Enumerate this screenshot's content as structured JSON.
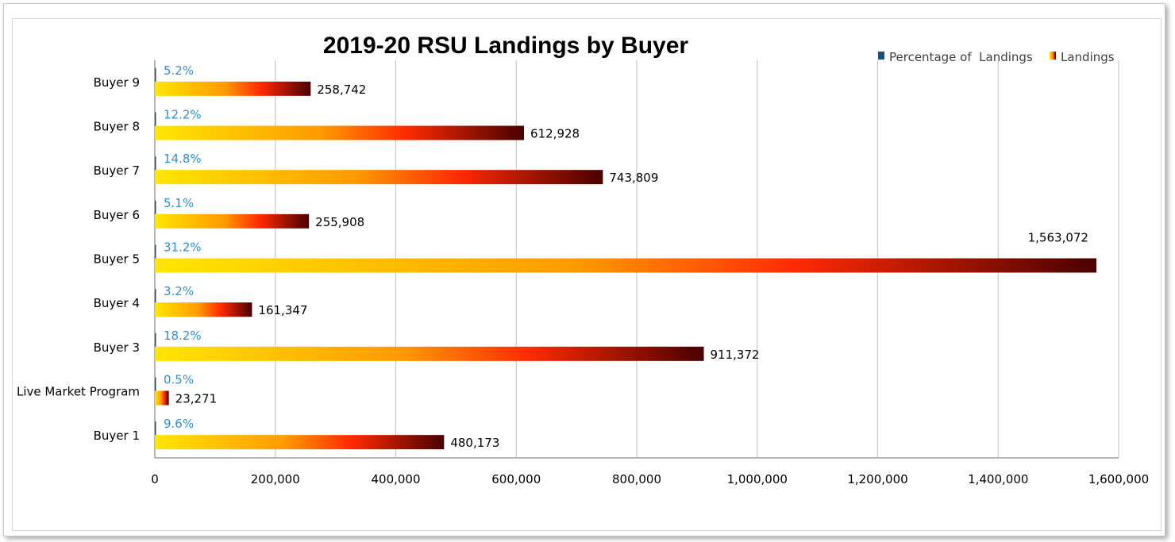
{
  "colors": {
    "percentage": "#1f4e79",
    "pct_label": "#2e8fd6",
    "bar_start": "#ffe600",
    "bar_mid1": "#ff9a00",
    "bar_mid2": "#ff2a00",
    "bar_end": "#4a0000"
  },
  "chart_data": {
    "type": "bar",
    "orientation": "horizontal",
    "title": "2019-20 RSU Landings by Buyer",
    "categories": [
      "Buyer 9",
      "Buyer 8",
      "Buyer 7",
      "Buyer 6",
      "Buyer 5",
      "Buyer 4",
      "Buyer 3",
      "Live Market Program",
      "Buyer 1"
    ],
    "series": [
      {
        "name": "Percentage of  Landings",
        "values": [
          0.052,
          0.122,
          0.148,
          0.051,
          0.312,
          0.032,
          0.182,
          0.005,
          0.096
        ],
        "labels": [
          "5.2%",
          "12.2%",
          "14.8%",
          "5.1%",
          "31.2%",
          "3.2%",
          "18.2%",
          "0.5%",
          "9.6%"
        ]
      },
      {
        "name": "Landings",
        "values": [
          258742,
          612928,
          743809,
          255908,
          1563072,
          161347,
          911372,
          23271,
          480173
        ],
        "labels": [
          "258,742",
          "612,928",
          "743,809",
          "255,908",
          "1,563,072",
          "161,347",
          "911,372",
          "23,271",
          "480,173"
        ]
      }
    ],
    "xlim": [
      0,
      1600000
    ],
    "x_ticks": [
      0,
      200000,
      400000,
      600000,
      800000,
      1000000,
      1200000,
      1400000,
      1600000
    ],
    "x_tick_labels": [
      "0",
      "200,000",
      "400,000",
      "600,000",
      "800,000",
      "1,000,000",
      "1,200,000",
      "1,400,000",
      "1,600,000"
    ],
    "grid": "vertical",
    "legend": "top-right"
  }
}
